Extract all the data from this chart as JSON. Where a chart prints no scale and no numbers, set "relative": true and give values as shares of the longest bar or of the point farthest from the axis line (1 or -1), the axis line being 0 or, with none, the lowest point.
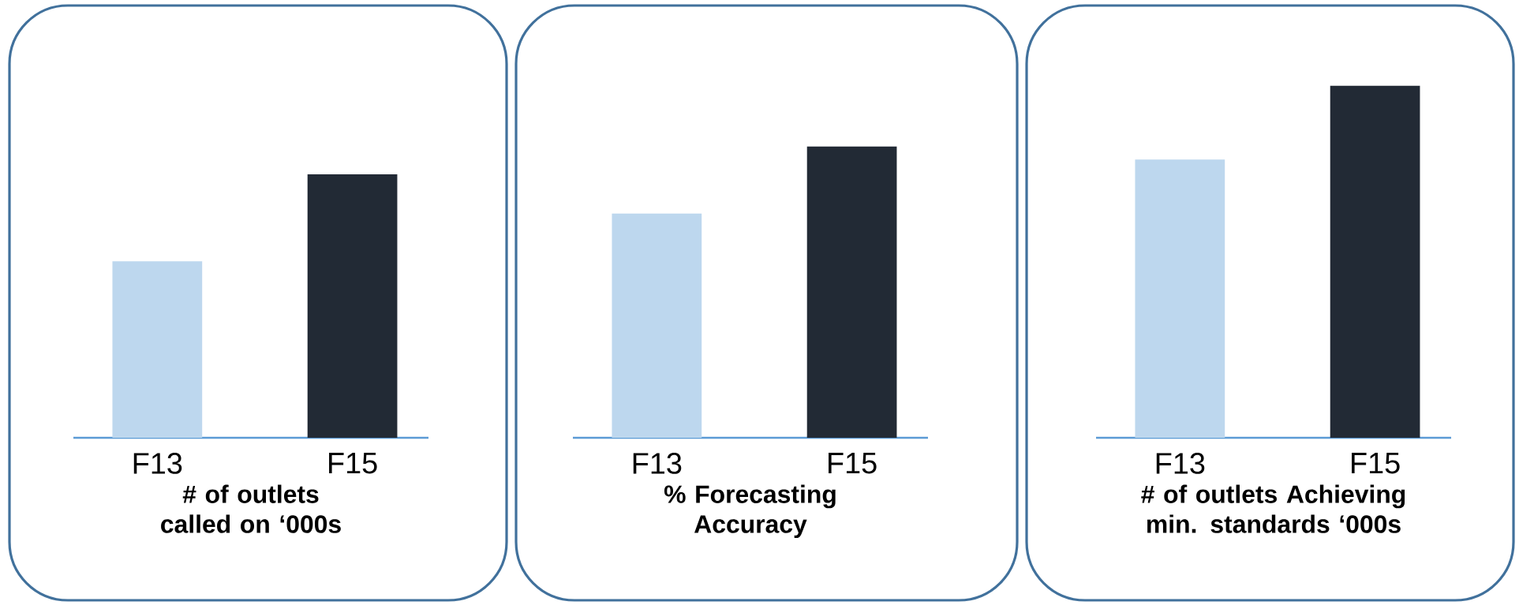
{
  "chart_data": [
    {
      "type": "bar",
      "relative": true,
      "categories": [
        "F13",
        "F15"
      ],
      "values": [
        0.67,
        1
      ],
      "colors": [
        "#bdd7ee",
        "#222a35"
      ],
      "xlabel": "# of outlets called on ‘000s"
    },
    {
      "type": "bar",
      "relative": true,
      "categories": [
        "F13",
        "F15"
      ],
      "values": [
        0.77,
        1
      ],
      "colors": [
        "#bdd7ee",
        "#222a35"
      ],
      "xlabel": "% Forecasting Accuracy"
    },
    {
      "type": "bar",
      "relative": true,
      "categories": [
        "F13",
        "F15"
      ],
      "values": [
        0.79,
        1
      ],
      "colors": [
        "#bdd7ee",
        "#222a35"
      ],
      "xlabel": "# of outlets Achieving min. standards ‘000s"
    }
  ]
}
